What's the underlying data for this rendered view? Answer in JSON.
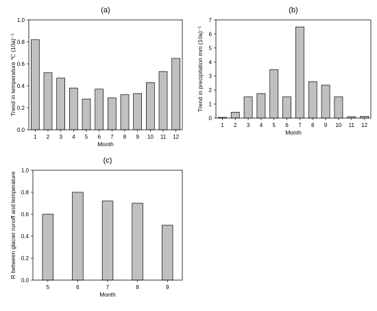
{
  "chart_data": [
    {
      "type": "bar",
      "panel_label": "(a)",
      "categories": [
        "1",
        "2",
        "3",
        "4",
        "5",
        "6",
        "7",
        "8",
        "9",
        "10",
        "11",
        "12"
      ],
      "values": [
        0.82,
        0.52,
        0.47,
        0.38,
        0.28,
        0.37,
        0.29,
        0.32,
        0.33,
        0.43,
        0.53,
        0.65
      ],
      "xlabel": "Month",
      "ylabel": "Trend in temperature ℃ (10a)⁻¹",
      "ylim": [
        0,
        1.0
      ],
      "yticks": [
        "0.0",
        "0.2",
        "0.4",
        "0.6",
        "0.8",
        "1.0"
      ],
      "grid": false,
      "bar_color": "#c0c0c0"
    },
    {
      "type": "bar",
      "panel_label": "(b)",
      "categories": [
        "1",
        "2",
        "3",
        "4",
        "5",
        "6",
        "7",
        "8",
        "9",
        "10",
        "11",
        "12"
      ],
      "values": [
        0.05,
        0.42,
        1.52,
        1.75,
        3.45,
        1.52,
        6.5,
        2.6,
        2.35,
        1.52,
        0.1,
        0.12
      ],
      "xlabel": "Month",
      "ylabel": "Trend in precipitation  mm (10a)⁻¹",
      "ylim": [
        0,
        7
      ],
      "yticks": [
        "0",
        "1",
        "2",
        "3",
        "4",
        "5",
        "6",
        "7"
      ],
      "grid": false,
      "bar_color": "#c0c0c0"
    },
    {
      "type": "bar",
      "panel_label": "(c)",
      "categories": [
        "5",
        "6",
        "7",
        "8",
        "9"
      ],
      "values": [
        0.6,
        0.8,
        0.72,
        0.7,
        0.5
      ],
      "xlabel": "Month",
      "ylabel": "R between glacier runoff and temperature",
      "ylim": [
        0,
        1.0
      ],
      "yticks": [
        "0.0",
        "0.2",
        "0.4",
        "0.6",
        "0.8",
        "1.0"
      ],
      "grid": false,
      "bar_color": "#c0c0c0"
    }
  ]
}
